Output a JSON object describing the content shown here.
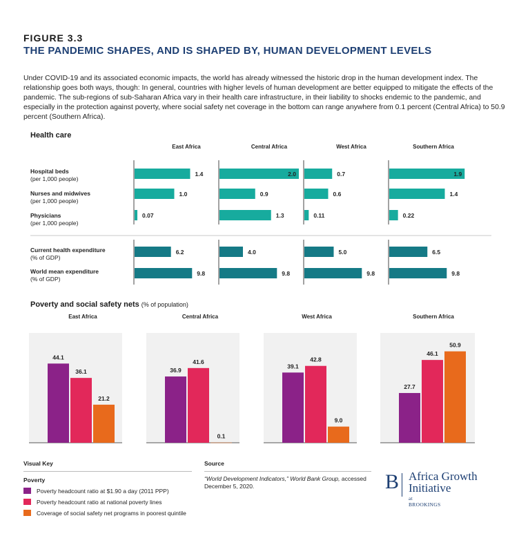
{
  "header": {
    "figure_label": "FIGURE 3.3",
    "title": "THE PANDEMIC SHAPES, AND IS SHAPED BY, HUMAN DEVELOPMENT LEVELS",
    "intro": "Under COVID-19 and its associated economic impacts, the world has already witnessed the historic drop in the human development index. The relationship goes both ways, though: In general, countries with higher levels of human development are better equipped to mitigate the effects of the pandemic. The sub-regions of sub-Saharan Africa vary in their health care infrastructure, in their liability to shocks endemic to the pandemic, and especially in the protection against poverty, where social safety net coverage in the bottom can range anywhere from 0.1 percent (Central Africa) to 50.9 percent (Southern Africa)."
  },
  "health": {
    "section_title": "Health care",
    "rows": [
      {
        "label": "Hospital beds",
        "unit": "(per 1,000 people)"
      },
      {
        "label": "Nurses and midwives",
        "unit": "(per 1,000 people)"
      },
      {
        "label": "Physicians",
        "unit": "(per 1,000 people)"
      },
      {
        "label": "Current health expenditure",
        "unit": "(% of GDP)"
      },
      {
        "label": "World mean expenditure",
        "unit": "(% of GDP)"
      }
    ]
  },
  "poverty": {
    "section_title": "Poverty and social safety nets",
    "section_note": "(% of population)"
  },
  "footer": {
    "visual_key_title": "Visual Key",
    "poverty_title": "Poverty",
    "key_items": [
      {
        "label": "Poverty headcount ratio at $1.90 a day (2011 PPP)",
        "color": "#8b2288"
      },
      {
        "label": "Poverty headcount ratio at national poverty lines",
        "color": "#e2285a"
      },
      {
        "label": "Coverage of social safety net programs in poorest quintile",
        "color": "#e86a1c"
      }
    ],
    "source_title": "Source",
    "source_italic": "“World Development Indicators,” World Bank Group,",
    "source_rest": " accessed December 5, 2020."
  },
  "logo": {
    "mark": "B",
    "name": "Africa Growth Initiative",
    "sub": "at BROOKINGS"
  },
  "colors": {
    "teal_light": "#17ab9e",
    "teal_dark": "#157a86",
    "purple": "#8b2288",
    "pink": "#e2285a",
    "orange": "#e86a1c",
    "title_blue": "#1d3f73"
  },
  "chart_data": [
    {
      "type": "bar",
      "orientation": "horizontal",
      "title": "Health care",
      "panels": [
        "East Africa",
        "Central Africa",
        "West Africa",
        "Southern Africa"
      ],
      "rows": [
        {
          "name": "Hospital beds",
          "values": [
            1.4,
            2.0,
            0.7,
            1.9
          ],
          "labels": [
            "1.4",
            "2.0",
            "0.7",
            "1.9"
          ],
          "color": "#17ab9e",
          "group": 0
        },
        {
          "name": "Nurses and midwives",
          "values": [
            1.0,
            0.9,
            0.6,
            1.4
          ],
          "labels": [
            "1.0",
            "0.9",
            "0.6",
            "1.4"
          ],
          "color": "#17ab9e",
          "group": 0
        },
        {
          "name": "Physicians",
          "values": [
            0.07,
            1.3,
            0.11,
            0.22
          ],
          "labels": [
            "0.07",
            "1.3",
            "0.11",
            "0.22"
          ],
          "color": "#17ab9e",
          "group": 0
        },
        {
          "name": "Current health expenditure",
          "values": [
            6.2,
            4.0,
            5.0,
            6.5
          ],
          "labels": [
            "6.2",
            "4.0",
            "5.0",
            "6.5"
          ],
          "color": "#157a86",
          "group": 1
        },
        {
          "name": "World mean expenditure",
          "values": [
            9.8,
            9.8,
            9.8,
            9.8
          ],
          "labels": [
            "9.8",
            "9.8",
            "9.8",
            "9.8"
          ],
          "color": "#157a86",
          "group": 1
        }
      ]
    },
    {
      "type": "bar",
      "title": "Poverty and social safety nets",
      "panels": [
        "East Africa",
        "Central Africa",
        "West Africa",
        "Southern Africa"
      ],
      "ylim": [
        0,
        55
      ],
      "series": [
        {
          "name": "Poverty headcount ratio at $1.90 a day (2011 PPP)",
          "color": "#8b2288",
          "values": [
            44.1,
            36.9,
            39.1,
            27.7
          ]
        },
        {
          "name": "Poverty headcount ratio at national poverty lines",
          "color": "#e2285a",
          "values": [
            36.1,
            41.6,
            42.8,
            46.1
          ]
        },
        {
          "name": "Coverage of social safety net programs in poorest quintile",
          "color": "#e86a1c",
          "values": [
            21.2,
            0.1,
            9.0,
            50.9
          ]
        }
      ]
    }
  ]
}
